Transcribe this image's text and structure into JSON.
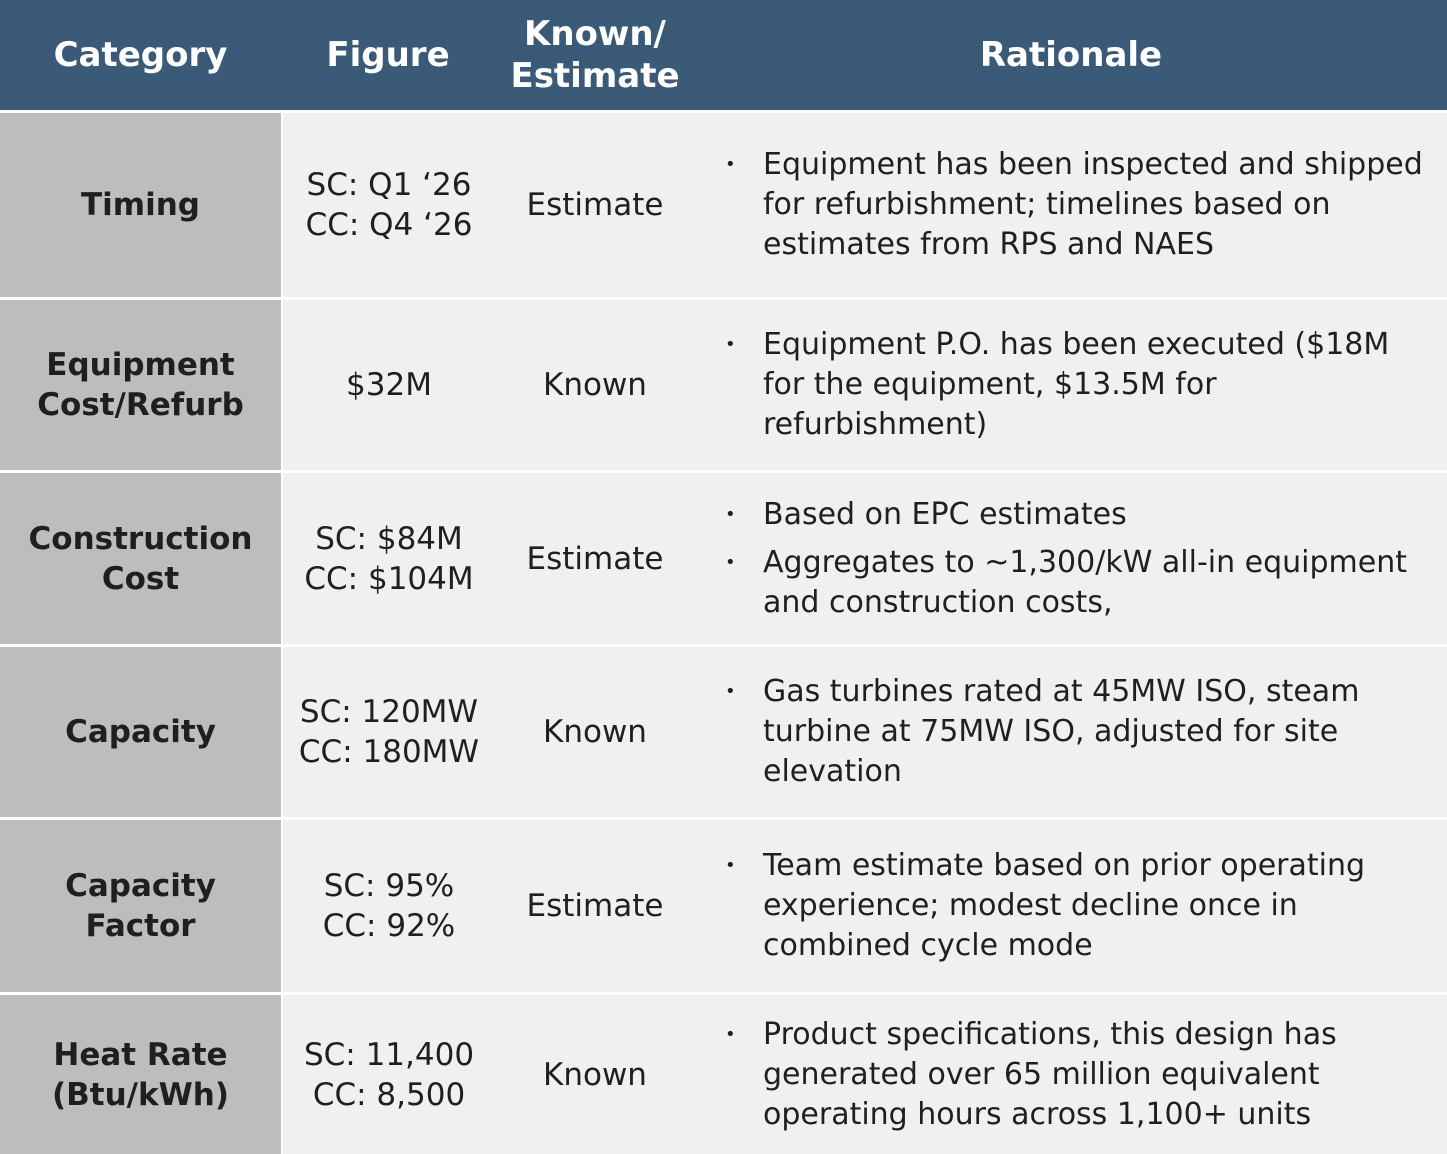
{
  "header": {
    "category": "Category",
    "figure": "Figure",
    "known_estimate": "Known/\nEstimate",
    "rationale": "Rationale"
  },
  "rows": [
    {
      "category": "Timing",
      "figure": "SC: Q1 ‘26\nCC: Q4 ‘26",
      "known_estimate": "Estimate",
      "rationale": [
        "Equipment has been inspected and shipped for refurbishment; timelines based on estimates from RPS and NAES"
      ]
    },
    {
      "category": "Equipment Cost/Refurb",
      "figure": "$32M",
      "known_estimate": "Known",
      "rationale": [
        "Equipment P.O. has been executed ($18M for the equipment, $13.5M for refurbishment)"
      ]
    },
    {
      "category": "Construction Cost",
      "figure": "SC: $84M\nCC: $104M",
      "known_estimate": "Estimate",
      "rationale": [
        "Based on EPC estimates",
        "Aggregates to ~1,300/kW all-in equipment and construction costs,"
      ]
    },
    {
      "category": "Capacity",
      "figure": "SC: 120MW\nCC: 180MW",
      "known_estimate": "Known",
      "rationale": [
        "Gas turbines rated at 45MW ISO, steam turbine at 75MW ISO, adjusted for site elevation"
      ]
    },
    {
      "category": "Capacity Factor",
      "figure": "SC: 95%\nCC: 92%",
      "known_estimate": "Estimate",
      "rationale": [
        "Team estimate based on prior operating experience; modest decline once in combined cycle mode"
      ]
    },
    {
      "category": "Heat Rate (Btu/kWh)",
      "figure": "SC: 11,400\nCC: 8,500",
      "known_estimate": "Known",
      "rationale": [
        "Product specifications, this design has generated over 65 million equivalent operating hours across 1,100+ units"
      ]
    }
  ],
  "bullet_glyph": "•"
}
